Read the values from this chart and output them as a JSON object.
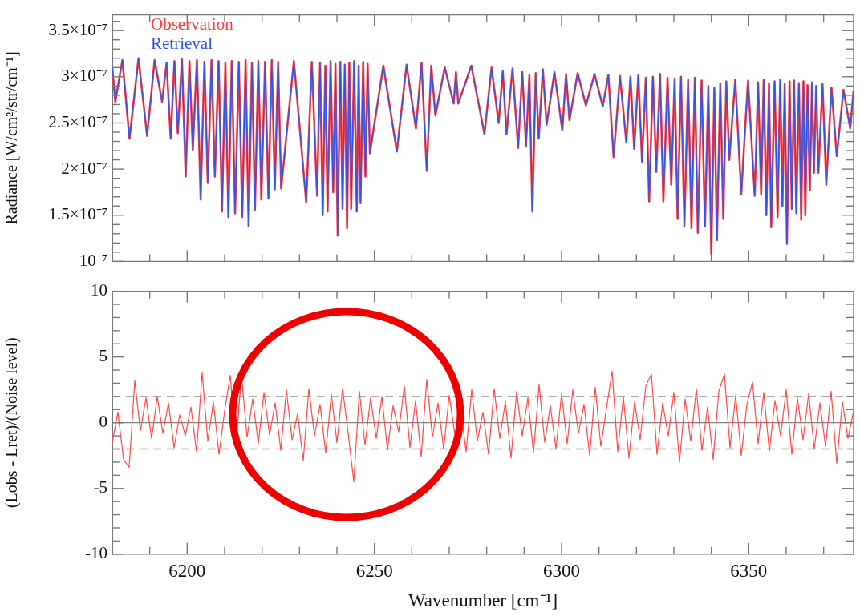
{
  "chart_data": [
    {
      "type": "line",
      "ylabel": "Radiance [W/cm²/str/cm⁻¹]",
      "legend": "top left",
      "tick_labels": "y",
      "xlim": [
        6180,
        6378
      ],
      "xticks": [
        {
          "value": 6190,
          "label": null
        },
        6200,
        {
          "value": 6210,
          "label": null
        },
        {
          "value": 6220,
          "label": null
        },
        {
          "value": 6230,
          "label": null
        },
        {
          "value": 6240,
          "label": null
        },
        6250,
        {
          "value": 6260,
          "label": null
        },
        {
          "value": 6270,
          "label": null
        },
        {
          "value": 6280,
          "label": null
        },
        {
          "value": 6290,
          "label": null
        },
        6300,
        {
          "value": 6310,
          "label": null
        },
        {
          "value": 6320,
          "label": null
        },
        {
          "value": 6330,
          "label": null
        },
        {
          "value": 6340,
          "label": null
        },
        6350,
        {
          "value": 6360,
          "label": null
        },
        {
          "value": 6370,
          "label": null
        }
      ],
      "ylim": [
        1e-07,
        3.67e-07
      ],
      "yticks": [
        {
          "value": 1e-07,
          "label": "10⁻⁷"
        },
        {
          "value": 1.1e-07,
          "label": null
        },
        {
          "value": 1.2e-07,
          "label": null
        },
        {
          "value": 1.3e-07,
          "label": null
        },
        {
          "value": 1.4e-07,
          "label": null
        },
        {
          "value": 1.5e-07,
          "label": "1.5×10⁻⁷"
        },
        {
          "value": 1.6e-07,
          "label": null
        },
        {
          "value": 1.7e-07,
          "label": null
        },
        {
          "value": 1.8e-07,
          "label": null
        },
        {
          "value": 1.9e-07,
          "label": null
        },
        {
          "value": 2e-07,
          "label": "2×10⁻⁷"
        },
        {
          "value": 2.1e-07,
          "label": null
        },
        {
          "value": 2.2e-07,
          "label": null
        },
        {
          "value": 2.3e-07,
          "label": null
        },
        {
          "value": 2.4e-07,
          "label": null
        },
        {
          "value": 2.5e-07,
          "label": "2.5×10⁻⁷"
        },
        {
          "value": 2.6e-07,
          "label": null
        },
        {
          "value": 2.7e-07,
          "label": null
        },
        {
          "value": 2.8e-07,
          "label": null
        },
        {
          "value": 2.9e-07,
          "label": null
        },
        {
          "value": 3e-07,
          "label": "3×10⁻⁷"
        },
        {
          "value": 3.1e-07,
          "label": null
        },
        {
          "value": 3.2e-07,
          "label": null
        },
        {
          "value": 3.3e-07,
          "label": null
        },
        {
          "value": 3.4e-07,
          "label": null
        },
        {
          "value": 3.5e-07,
          "label": "3.5×10⁻⁷"
        },
        {
          "value": 3.6e-07,
          "label": null
        }
      ],
      "x": [
        6180.0,
        6180.8,
        6182.7,
        6184.6,
        6187.0,
        6189.3,
        6191.3,
        6193.3,
        6194.5,
        6195.6,
        6196.6,
        6197.5,
        6198.6,
        6199.6,
        6200.6,
        6201.5,
        6202.6,
        6203.6,
        6204.6,
        6205.5,
        6206.5,
        6207.4,
        6208.4,
        6209.3,
        6210.2,
        6211.0,
        6211.9,
        6212.8,
        6213.8,
        6214.7,
        6215.6,
        6216.4,
        6217.3,
        6218.1,
        6219.0,
        6219.8,
        6220.8,
        6221.7,
        6222.6,
        6223.4,
        6224.3,
        6225.1,
        6228.5,
        6231.8,
        6233.3,
        6234.7,
        6235.5,
        6236.2,
        6236.9,
        6237.5,
        6238.3,
        6239.0,
        6239.6,
        6240.2,
        6240.9,
        6241.5,
        6242.1,
        6242.7,
        6243.3,
        6243.8,
        6244.6,
        6245.3,
        6245.8,
        6246.3,
        6247.0,
        6247.6,
        6248.2,
        6248.8,
        6252.4,
        6256.0,
        6258.6,
        6261.1,
        6262.6,
        6264.0,
        6265.2,
        6266.3,
        6268.8,
        6271.2,
        6271.8,
        6272.4,
        6275.9,
        6279.4,
        6281.3,
        6283.2,
        6284.3,
        6285.3,
        6286.9,
        6288.4,
        6289.5,
        6290.5,
        6291.4,
        6292.2,
        6293.1,
        6293.9,
        6295.0,
        6296.0,
        6298.1,
        6300.2,
        6301.2,
        6302.1,
        6304.3,
        6306.5,
        6308.8,
        6311.0,
        6312.5,
        6313.9,
        6315.6,
        6317.3,
        6318.4,
        6319.4,
        6320.5,
        6321.5,
        6322.5,
        6323.4,
        6324.4,
        6325.3,
        6326.3,
        6327.2,
        6328.3,
        6329.3,
        6330.2,
        6331.0,
        6331.9,
        6332.8,
        6333.8,
        6334.7,
        6335.6,
        6336.4,
        6337.4,
        6338.3,
        6339.2,
        6340.0,
        6340.8,
        6341.5,
        6342.4,
        6343.2,
        6344.0,
        6344.8,
        6346.4,
        6348.0,
        6349.8,
        6351.6,
        6352.5,
        6353.3,
        6354.0,
        6354.7,
        6355.4,
        6356.0,
        6356.9,
        6357.7,
        6358.4,
        6359.0,
        6359.6,
        6360.2,
        6360.9,
        6361.5,
        6362.1,
        6362.7,
        6363.4,
        6364.0,
        6364.6,
        6365.1,
        6365.7,
        6366.3,
        6366.9,
        6367.4,
        6368.0,
        6368.6,
        6369.7,
        6370.7,
        6372.1,
        6373.5,
        6375.3,
        6377.1,
        6378.0
      ],
      "series": [
        {
          "name": "Observation",
          "color": "#ff3b3b",
          "values": [
            3.1e-07,
            2.73e-07,
            3.18e-07,
            2.33e-07,
            3.2e-07,
            2.36e-07,
            3.18e-07,
            2.73e-07,
            3.15e-07,
            2.33e-07,
            3.17e-07,
            2.39e-07,
            3.19e-07,
            1.92e-07,
            3.17e-07,
            2.21e-07,
            3.18e-07,
            1.67e-07,
            3.16e-07,
            1.85e-07,
            3.18e-07,
            1.92e-07,
            3.17e-07,
            1.54e-07,
            3.15e-07,
            1.48e-07,
            3.17e-07,
            1.52e-07,
            3.16e-07,
            1.48e-07,
            3.18e-07,
            1.38e-07,
            3.15e-07,
            1.56e-07,
            3.17e-07,
            1.67e-07,
            3.16e-07,
            1.68e-07,
            3.18e-07,
            1.78e-07,
            3.16e-07,
            1.79e-07,
            3.17e-07,
            1.64e-07,
            3.16e-07,
            1.71e-07,
            3.15e-07,
            1.5e-07,
            3.12e-07,
            1.54e-07,
            3.17e-07,
            1.75e-07,
            3.14e-07,
            1.28e-07,
            3.16e-07,
            1.57e-07,
            3.13e-07,
            1.36e-07,
            3.15e-07,
            1.57e-07,
            3.17e-07,
            1.54e-07,
            3.12e-07,
            1.63e-07,
            3.16e-07,
            1.92e-07,
            3.14e-07,
            2.17e-07,
            3.12e-07,
            2.19e-07,
            3.13e-07,
            2.44e-07,
            3.15e-07,
            1.98e-07,
            3.12e-07,
            2.58e-07,
            3.1e-07,
            2.71e-07,
            3.05e-07,
            2.71e-07,
            3.12e-07,
            2.38e-07,
            3.1e-07,
            2.5e-07,
            3.06e-07,
            2.38e-07,
            3.09e-07,
            2.23e-07,
            3.05e-07,
            2.25e-07,
            3.02e-07,
            1.54e-07,
            3.04e-07,
            2.33e-07,
            3.08e-07,
            2.48e-07,
            3.05e-07,
            2.42e-07,
            3.03e-07,
            2.53e-07,
            3.04e-07,
            2.69e-07,
            3.03e-07,
            2.68e-07,
            3.02e-07,
            2.13e-07,
            3.01e-07,
            2.29e-07,
            3e-07,
            2.22e-07,
            3.02e-07,
            2.08e-07,
            2.99e-07,
            1.65e-07,
            3e-07,
            1.97e-07,
            3.03e-07,
            1.65e-07,
            2.99e-07,
            1.83e-07,
            2.98e-07,
            1.46e-07,
            3e-07,
            1.38e-07,
            2.97e-07,
            1.36e-07,
            2.99e-07,
            1.31e-07,
            2.96e-07,
            1.38e-07,
            2.9e-07,
            1.08e-07,
            2.88e-07,
            1.23e-07,
            2.93e-07,
            1.46e-07,
            2.95e-07,
            2.1e-07,
            2.97e-07,
            1.73e-07,
            2.96e-07,
            1.71e-07,
            2.94e-07,
            1.73e-07,
            2.97e-07,
            1.5e-07,
            2.93e-07,
            1.37e-07,
            2.95e-07,
            1.48e-07,
            2.97e-07,
            1.6e-07,
            2.92e-07,
            1.19e-07,
            2.95e-07,
            1.57e-07,
            2.96e-07,
            1.52e-07,
            2.93e-07,
            1.45e-07,
            2.95e-07,
            1.5e-07,
            2.91e-07,
            1.77e-07,
            2.94e-07,
            1.96e-07,
            2.9e-07,
            1.96e-07,
            2.92e-07,
            1.83e-07,
            2.88e-07,
            2.14e-07,
            2.86e-07,
            2.44e-07,
            2.85e-07
          ]
        },
        {
          "name": "Retrieval",
          "color": "#2b55ee",
          "values": [
            3.1e-07,
            2.73e-07,
            3.18e-07,
            2.33e-07,
            3.2e-07,
            2.36e-07,
            3.18e-07,
            2.73e-07,
            3.15e-07,
            2.33e-07,
            3.17e-07,
            2.39e-07,
            3.19e-07,
            1.92e-07,
            3.17e-07,
            2.21e-07,
            3.18e-07,
            1.67e-07,
            3.16e-07,
            1.85e-07,
            3.18e-07,
            1.92e-07,
            3.17e-07,
            1.54e-07,
            3.15e-07,
            1.48e-07,
            3.17e-07,
            1.52e-07,
            3.16e-07,
            1.48e-07,
            3.18e-07,
            1.38e-07,
            3.15e-07,
            1.56e-07,
            3.17e-07,
            1.67e-07,
            3.16e-07,
            1.68e-07,
            3.18e-07,
            1.78e-07,
            3.16e-07,
            1.79e-07,
            3.17e-07,
            1.64e-07,
            3.16e-07,
            1.71e-07,
            3.15e-07,
            1.5e-07,
            3.12e-07,
            1.54e-07,
            3.17e-07,
            1.75e-07,
            3.14e-07,
            1.28e-07,
            3.16e-07,
            1.57e-07,
            3.13e-07,
            1.36e-07,
            3.15e-07,
            1.57e-07,
            3.17e-07,
            1.54e-07,
            3.12e-07,
            1.63e-07,
            3.16e-07,
            1.92e-07,
            3.14e-07,
            2.17e-07,
            3.12e-07,
            2.19e-07,
            3.13e-07,
            2.44e-07,
            3.15e-07,
            1.98e-07,
            3.12e-07,
            2.58e-07,
            3.1e-07,
            2.71e-07,
            3.05e-07,
            2.71e-07,
            3.12e-07,
            2.38e-07,
            3.1e-07,
            2.5e-07,
            3.06e-07,
            2.38e-07,
            3.09e-07,
            2.23e-07,
            3.05e-07,
            2.25e-07,
            3.02e-07,
            1.54e-07,
            3.04e-07,
            2.33e-07,
            3.08e-07,
            2.48e-07,
            3.05e-07,
            2.42e-07,
            3.03e-07,
            2.53e-07,
            3.04e-07,
            2.69e-07,
            3.03e-07,
            2.68e-07,
            3.02e-07,
            2.13e-07,
            3.01e-07,
            2.29e-07,
            3e-07,
            2.22e-07,
            3.02e-07,
            2.08e-07,
            2.99e-07,
            1.65e-07,
            3e-07,
            1.97e-07,
            3.03e-07,
            1.65e-07,
            2.99e-07,
            1.83e-07,
            2.98e-07,
            1.46e-07,
            3e-07,
            1.38e-07,
            2.97e-07,
            1.36e-07,
            2.99e-07,
            1.31e-07,
            2.96e-07,
            1.38e-07,
            2.9e-07,
            1.08e-07,
            2.88e-07,
            1.23e-07,
            2.93e-07,
            1.46e-07,
            2.95e-07,
            2.1e-07,
            2.97e-07,
            1.73e-07,
            2.96e-07,
            1.71e-07,
            2.94e-07,
            1.73e-07,
            2.97e-07,
            1.5e-07,
            2.93e-07,
            1.37e-07,
            2.95e-07,
            1.48e-07,
            2.97e-07,
            1.6e-07,
            2.92e-07,
            1.19e-07,
            2.95e-07,
            1.57e-07,
            2.96e-07,
            1.52e-07,
            2.93e-07,
            1.45e-07,
            2.95e-07,
            1.5e-07,
            2.91e-07,
            1.77e-07,
            2.94e-07,
            1.96e-07,
            2.9e-07,
            1.96e-07,
            2.92e-07,
            1.83e-07,
            2.88e-07,
            2.14e-07,
            2.86e-07,
            2.44e-07,
            2.85e-07
          ]
        }
      ]
    },
    {
      "type": "line",
      "xlabel": "Wavenumber [cm⁻¹]",
      "ylabel": "(Lobs - Lret)/(Noise level)",
      "xlim": [
        6180,
        6378
      ],
      "xticks": [
        {
          "value": 6190,
          "label": null
        },
        6200,
        {
          "value": 6210,
          "label": null
        },
        {
          "value": 6220,
          "label": null
        },
        {
          "value": 6230,
          "label": null
        },
        {
          "value": 6240,
          "label": null
        },
        6250,
        {
          "value": 6260,
          "label": null
        },
        {
          "value": 6270,
          "label": null
        },
        {
          "value": 6280,
          "label": null
        },
        {
          "value": 6290,
          "label": null
        },
        6300,
        {
          "value": 6310,
          "label": null
        },
        {
          "value": 6320,
          "label": null
        },
        {
          "value": 6330,
          "label": null
        },
        {
          "value": 6340,
          "label": null
        },
        6350,
        {
          "value": 6360,
          "label": null
        },
        {
          "value": 6370,
          "label": null
        }
      ],
      "ylim": [
        -10,
        10
      ],
      "yticks": [
        -10,
        {
          "value": -9,
          "label": null
        },
        {
          "value": -8,
          "label": null
        },
        {
          "value": -7,
          "label": null
        },
        {
          "value": -6,
          "label": null
        },
        -5,
        {
          "value": -4,
          "label": null
        },
        {
          "value": -3,
          "label": null
        },
        {
          "value": -2,
          "label": null
        },
        {
          "value": -1,
          "label": null
        },
        0,
        {
          "value": 1,
          "label": null
        },
        {
          "value": 2,
          "label": null
        },
        {
          "value": 3,
          "label": null
        },
        {
          "value": 4,
          "label": null
        },
        5,
        {
          "value": 6,
          "label": null
        },
        {
          "value": 7,
          "label": null
        },
        {
          "value": 8,
          "label": null
        },
        {
          "value": 9,
          "label": null
        },
        10
      ],
      "ref_lines": [
        {
          "axis": "y",
          "value": 0,
          "color": "#808080",
          "line_style": "solid"
        },
        {
          "axis": "y",
          "value": 2,
          "color": "#909090",
          "line_style": "dashed"
        },
        {
          "axis": "y",
          "value": -2,
          "color": "#909090",
          "line_style": "dashed"
        }
      ],
      "x": [
        6180,
        6181.5,
        6183,
        6184.5,
        6186,
        6187.5,
        6189,
        6190.5,
        6192,
        6193.5,
        6195,
        6196.5,
        6198,
        6199.5,
        6201,
        6202.5,
        6204,
        6205.5,
        6207,
        6208.5,
        6210,
        6211.5,
        6213,
        6214.5,
        6216,
        6217.5,
        6219,
        6220.5,
        6222,
        6223.5,
        6225,
        6226.5,
        6228,
        6229.5,
        6231,
        6232.5,
        6234,
        6235.5,
        6237,
        6238.5,
        6240,
        6241.5,
        6243,
        6244.5,
        6246,
        6247.5,
        6249,
        6250.5,
        6252,
        6253.5,
        6255,
        6256.5,
        6258,
        6259.5,
        6261,
        6262.5,
        6264,
        6265.5,
        6267,
        6268.5,
        6270,
        6271.5,
        6273,
        6274.5,
        6276,
        6277.5,
        6279,
        6280.5,
        6282,
        6283.5,
        6285,
        6286.5,
        6288,
        6289.5,
        6291,
        6292.5,
        6294,
        6295.5,
        6297,
        6298.5,
        6300,
        6301.5,
        6303,
        6304.5,
        6306,
        6307.5,
        6309,
        6310.5,
        6312,
        6313.5,
        6315,
        6316.5,
        6318,
        6319.5,
        6321,
        6322.5,
        6324,
        6325.5,
        6327,
        6328.5,
        6330,
        6331.5,
        6333,
        6334.5,
        6336,
        6337.5,
        6339,
        6340.5,
        6342,
        6343.5,
        6345,
        6346.5,
        6348,
        6349.5,
        6351,
        6352.5,
        6354,
        6355.5,
        6357,
        6358.5,
        6360,
        6361.5,
        6363,
        6364.5,
        6366,
        6367.5,
        6369,
        6370.5,
        6372,
        6373.5,
        6375,
        6376.5,
        6378
      ],
      "series": [
        {
          "color": "#ff4a4a",
          "values": [
            -1.5,
            0.8,
            -2.8,
            -3.4,
            3.2,
            -0.6,
            1.9,
            -1.2,
            2.0,
            -0.8,
            1.5,
            -1.9,
            0.6,
            -1.0,
            1.2,
            -2.2,
            3.8,
            -1.4,
            1.6,
            -2.4,
            0.9,
            3.6,
            -1.8,
            3.6,
            -1.1,
            1.8,
            -1.6,
            2.3,
            -0.9,
            1.5,
            -2.1,
            2.5,
            -1.3,
            0.7,
            -2.9,
            2.6,
            -1.0,
            1.4,
            -2.3,
            2.2,
            -1.5,
            2.6,
            -0.8,
            -4.5,
            2.4,
            -1.7,
            1.9,
            -1.2,
            2.0,
            -2.1,
            1.3,
            -0.7,
            2.8,
            -1.9,
            1.7,
            -2.6,
            3.3,
            -1.1,
            1.5,
            -2.0,
            2.1,
            -0.9,
            1.2,
            -2.2,
            2.5,
            -1.4,
            0.8,
            -2.4,
            2.6,
            -1.2,
            1.6,
            -2.7,
            2.4,
            -1.0,
            1.9,
            -2.3,
            2.9,
            -1.5,
            1.3,
            -2.0,
            2.2,
            -1.6,
            2.5,
            -0.8,
            1.4,
            -2.5,
            2.7,
            -1.8,
            1.1,
            3.9,
            -2.2,
            2.0,
            -2.7,
            1.6,
            -1.3,
            2.8,
            3.7,
            -2.4,
            1.5,
            -1.0,
            2.3,
            -3.0,
            1.8,
            -1.4,
            2.6,
            -2.1,
            1.2,
            -2.8,
            2.4,
            3.7,
            -1.9,
            2.1,
            -2.5,
            1.4,
            3.1,
            -1.6,
            2.3,
            -2.2,
            1.7,
            -1.0,
            2.5,
            -2.4,
            1.9,
            -1.3,
            2.2,
            -2.0,
            1.5,
            -1.8,
            2.4,
            -3.1,
            1.6,
            -1.2,
            0.9
          ]
        }
      ]
    }
  ]
}
